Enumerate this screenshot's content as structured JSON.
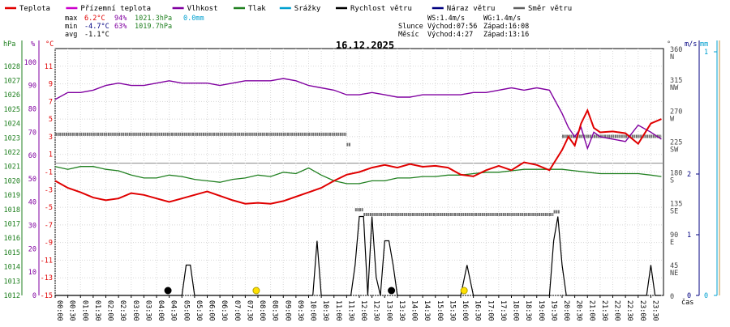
{
  "chart_data": {
    "type": "line",
    "title": "16.12.2025",
    "xlabel": "čas",
    "legend": [
      {
        "name": "Teplota",
        "color": "#e00000"
      },
      {
        "name": "Přízemní teplota",
        "color": "#cc00cc"
      },
      {
        "name": "Vlhkost",
        "color": "#8000a0"
      },
      {
        "name": "Tlak",
        "color": "#208020"
      },
      {
        "name": "Srážky",
        "color": "#00a0d0"
      },
      {
        "name": "Rychlost větru",
        "color": "#000000"
      },
      {
        "name": "Náraz větru",
        "color": "#000080"
      },
      {
        "name": "Směr větru",
        "color": "#606060"
      }
    ],
    "stats": {
      "max_label": "max",
      "max_temp": "6.2°C",
      "max_hum": "94%",
      "max_press": "1021.3hPa",
      "max_rain": "0.0mm",
      "min_label": "min",
      "min_temp": "-4.7°C",
      "min_hum": "63%",
      "min_press": "1019.7hPa",
      "avg_label": "avg",
      "avg_temp": "-1.1°C",
      "ws": "WS:1.4m/s",
      "wg": "WG:1.4m/s",
      "sun_label": "Slunce",
      "sun_rise": "Východ:07:56",
      "sun_set": "Západ:16:08",
      "moon_label": "Měsíc",
      "moon_rise": "Východ:4:27",
      "moon_set": "Západ:13:16"
    },
    "axes": {
      "hpa": {
        "unit": "hPa",
        "ticks": [
          1012,
          1013,
          1014,
          1015,
          1016,
          1017,
          1018,
          1019,
          1020,
          1021,
          1022,
          1023,
          1024,
          1025,
          1026,
          1027,
          1028
        ]
      },
      "pct": {
        "unit": "%",
        "ticks": [
          0,
          10,
          20,
          30,
          40,
          50,
          60,
          70,
          80,
          90,
          100
        ]
      },
      "temp": {
        "unit": "°C",
        "ticks": [
          -15,
          -13,
          -11,
          -9,
          -7,
          -5,
          -3,
          -1,
          1,
          3,
          5,
          7,
          9,
          11
        ]
      },
      "dir": {
        "unit": "°",
        "ticks": [
          {
            "v": 0,
            "l": "0",
            "c": ""
          },
          {
            "v": 45,
            "l": "45",
            "c": "NE"
          },
          {
            "v": 90,
            "l": "90",
            "c": "E"
          },
          {
            "v": 135,
            "l": "135",
            "c": "SE"
          },
          {
            "v": 180,
            "l": "180",
            "c": "S"
          },
          {
            "v": 225,
            "l": "225",
            "c": "SW"
          },
          {
            "v": 270,
            "l": "270",
            "c": "W"
          },
          {
            "v": 315,
            "l": "315",
            "c": "NW"
          },
          {
            "v": 360,
            "l": "360",
            "c": "N"
          }
        ]
      },
      "ms": {
        "unit": "m/s",
        "ticks": [
          0,
          1,
          2
        ]
      },
      "mm": {
        "unit": "mm",
        "ticks": [
          0,
          1
        ]
      }
    },
    "x_ticks": [
      "00:00",
      "00:30",
      "01:00",
      "01:30",
      "02:00",
      "02:30",
      "03:00",
      "03:30",
      "04:00",
      "04:30",
      "05:00",
      "05:30",
      "06:00",
      "06:30",
      "07:00",
      "07:30",
      "08:00",
      "08:30",
      "09:00",
      "09:30",
      "10:00",
      "10:30",
      "11:00",
      "11:30",
      "12:00",
      "12:30",
      "13:00",
      "13:30",
      "14:00",
      "14:30",
      "15:00",
      "15:30",
      "16:00",
      "16:30",
      "17:00",
      "17:30",
      "18:00",
      "18:30",
      "19:00",
      "19:30",
      "20:00",
      "20:30",
      "21:00",
      "21:30",
      "22:00",
      "22:30",
      "23:00",
      "23:30"
    ],
    "series_temperature": {
      "name": "Teplota",
      "unit": "°C",
      "x": [
        "00:00",
        "00:30",
        "01:00",
        "01:30",
        "02:00",
        "02:30",
        "03:00",
        "03:30",
        "04:00",
        "04:30",
        "05:00",
        "05:30",
        "06:00",
        "06:30",
        "07:00",
        "07:30",
        "08:00",
        "08:30",
        "09:00",
        "09:30",
        "10:00",
        "10:30",
        "11:00",
        "11:30",
        "12:00",
        "12:30",
        "13:00",
        "13:30",
        "14:00",
        "14:30",
        "15:00",
        "15:30",
        "16:00",
        "16:30",
        "17:00",
        "17:30",
        "18:00",
        "18:30",
        "19:00",
        "19:30",
        "20:00",
        "20:15",
        "20:30",
        "20:45",
        "21:00",
        "21:15",
        "21:30",
        "22:00",
        "22:30",
        "23:00",
        "23:30",
        "23:55"
      ],
      "values": [
        -2.0,
        -2.8,
        -3.3,
        -3.9,
        -4.2,
        -4.0,
        -3.4,
        -3.6,
        -4.0,
        -4.4,
        -4.0,
        -3.6,
        -3.2,
        -3.7,
        -4.2,
        -4.6,
        -4.5,
        -4.6,
        -4.3,
        -3.8,
        -3.3,
        -2.8,
        -2.0,
        -1.3,
        -1.0,
        -0.5,
        -0.2,
        -0.5,
        -0.1,
        -0.4,
        -0.3,
        -0.5,
        -1.3,
        -1.5,
        -0.8,
        -0.3,
        -0.8,
        0.1,
        -0.2,
        -0.8,
        1.5,
        3.0,
        2.0,
        4.5,
        6.0,
        4.0,
        3.5,
        3.6,
        3.4,
        2.2,
        4.5,
        5.0
      ]
    },
    "series_humidity": {
      "name": "Vlhkost",
      "unit": "%",
      "x": [
        "00:00",
        "00:30",
        "01:00",
        "01:30",
        "02:00",
        "02:30",
        "03:00",
        "03:30",
        "04:00",
        "04:30",
        "05:00",
        "05:30",
        "06:00",
        "06:30",
        "07:00",
        "07:30",
        "08:00",
        "08:30",
        "09:00",
        "09:30",
        "10:00",
        "10:30",
        "11:00",
        "11:30",
        "12:00",
        "12:30",
        "13:00",
        "13:30",
        "14:00",
        "14:30",
        "15:00",
        "15:30",
        "16:00",
        "16:30",
        "17:00",
        "17:30",
        "18:00",
        "18:30",
        "19:00",
        "19:30",
        "19:45",
        "20:00",
        "20:15",
        "20:30",
        "20:45",
        "21:00",
        "21:15",
        "21:30",
        "22:00",
        "22:30",
        "23:00",
        "23:30",
        "23:55"
      ],
      "values": [
        84,
        87,
        87,
        88,
        90,
        91,
        90,
        90,
        91,
        92,
        91,
        91,
        91,
        90,
        91,
        92,
        92,
        92,
        93,
        92,
        90,
        89,
        88,
        86,
        86,
        87,
        86,
        85,
        85,
        86,
        86,
        86,
        86,
        87,
        87,
        88,
        89,
        88,
        89,
        88,
        83,
        78,
        72,
        68,
        72,
        63,
        70,
        68,
        67,
        66,
        73,
        70,
        67
      ]
    },
    "series_pressure": {
      "name": "Tlak",
      "unit": "hPa",
      "x": [
        "00:00",
        "00:30",
        "01:00",
        "01:30",
        "02:00",
        "02:30",
        "03:00",
        "03:30",
        "04:00",
        "04:30",
        "05:00",
        "05:30",
        "06:00",
        "06:30",
        "07:00",
        "07:30",
        "08:00",
        "08:30",
        "09:00",
        "09:30",
        "10:00",
        "10:30",
        "11:00",
        "11:30",
        "12:00",
        "12:30",
        "13:00",
        "13:30",
        "14:00",
        "14:30",
        "15:00",
        "15:30",
        "16:00",
        "16:30",
        "17:00",
        "17:30",
        "18:00",
        "18:30",
        "19:00",
        "19:30",
        "20:00",
        "20:30",
        "21:00",
        "21:30",
        "22:00",
        "22:30",
        "23:00",
        "23:30",
        "23:55"
      ],
      "values": [
        1021.0,
        1020.8,
        1021.0,
        1021.0,
        1020.8,
        1020.7,
        1020.4,
        1020.2,
        1020.2,
        1020.4,
        1020.3,
        1020.1,
        1020.0,
        1019.9,
        1020.1,
        1020.2,
        1020.4,
        1020.3,
        1020.6,
        1020.5,
        1020.9,
        1020.4,
        1020.0,
        1019.8,
        1019.8,
        1020.0,
        1020.0,
        1020.2,
        1020.2,
        1020.3,
        1020.3,
        1020.4,
        1020.4,
        1020.5,
        1020.6,
        1020.6,
        1020.7,
        1020.8,
        1020.8,
        1020.8,
        1020.8,
        1020.7,
        1020.6,
        1020.5,
        1020.5,
        1020.5,
        1020.5,
        1020.4,
        1020.3
      ]
    },
    "series_wind_direction": {
      "name": "Směr větru",
      "unit": "°",
      "segments": [
        {
          "x": [
            "00:00",
            "11:30"
          ],
          "value": 235
        },
        {
          "x": [
            "11:30",
            "11:40"
          ],
          "value": 220
        },
        {
          "x": [
            "11:50",
            "12:10"
          ],
          "value": 125
        },
        {
          "x": [
            "12:10",
            "19:40"
          ],
          "value": 118
        },
        {
          "x": [
            "19:40",
            "19:55"
          ],
          "value": 122
        },
        {
          "x": [
            "20:00",
            "23:55"
          ],
          "value": 232
        }
      ]
    },
    "series_wind_speed": {
      "name": "Rychlost větru",
      "unit": "m/s",
      "x": [
        "00:00",
        "05:00",
        "05:10",
        "05:20",
        "05:30",
        "10:00",
        "10:10",
        "10:20",
        "10:30",
        "11:40",
        "11:50",
        "12:00",
        "12:10",
        "12:20",
        "12:30",
        "12:40",
        "12:50",
        "13:00",
        "13:10",
        "13:20",
        "13:30",
        "13:40",
        "16:00",
        "16:15",
        "16:30",
        "19:30",
        "19:40",
        "19:50",
        "20:00",
        "20:10",
        "23:20",
        "23:30",
        "23:40",
        "23:55"
      ],
      "values": [
        0,
        0,
        0.5,
        0.5,
        0,
        0,
        0,
        0.9,
        0,
        0,
        0.5,
        1.3,
        1.3,
        0,
        1.3,
        0.3,
        0,
        0.9,
        0.9,
        0.5,
        0,
        0,
        0,
        0.5,
        0,
        0,
        0.9,
        1.3,
        0.5,
        0,
        0,
        0.5,
        0,
        0
      ]
    },
    "sun_moon_markers": [
      {
        "type": "moon-rise",
        "x": "04:27"
      },
      {
        "type": "sun-rise",
        "x": "07:56"
      },
      {
        "type": "moon-set",
        "x": "13:16"
      },
      {
        "type": "sun-set",
        "x": "16:08"
      }
    ],
    "grid": true
  }
}
